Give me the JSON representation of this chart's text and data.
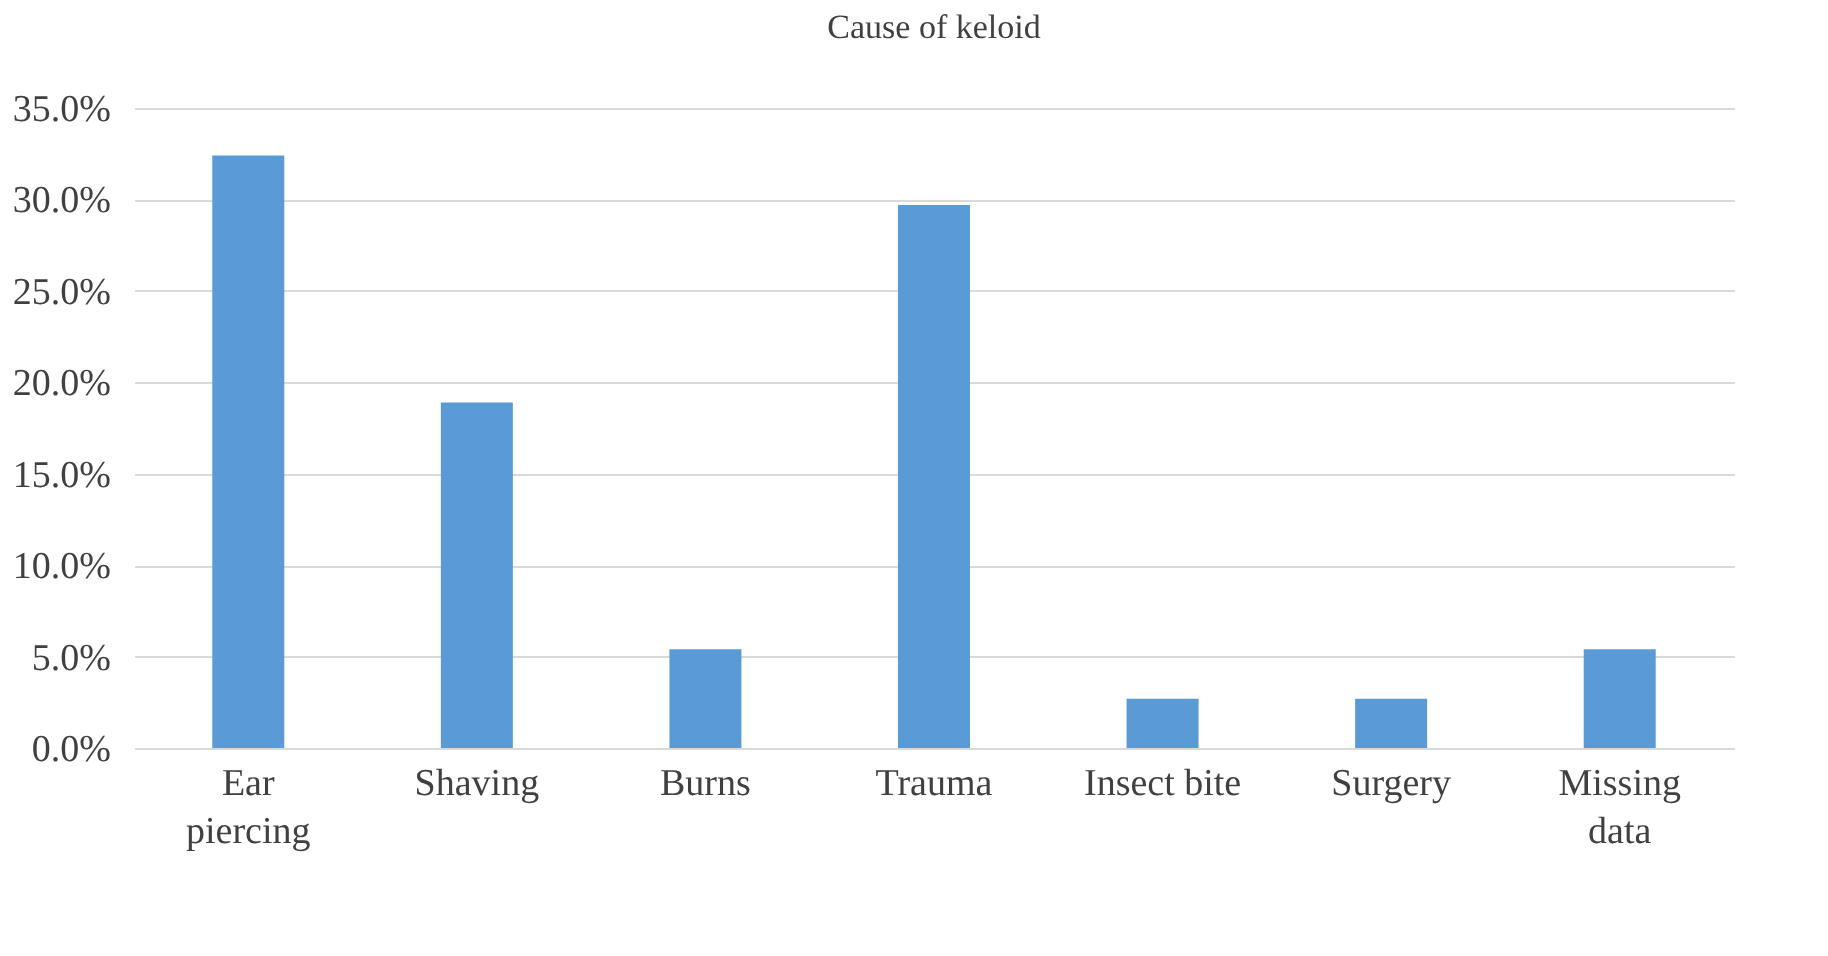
{
  "chart_data": {
    "type": "bar",
    "title": "Cause of keloid",
    "categories": [
      "Ear piercing",
      "Shaving",
      "Burns",
      "Trauma",
      "Insect bite",
      "Surgery",
      "Missing data"
    ],
    "values": [
      32.4,
      18.9,
      5.4,
      29.7,
      2.7,
      2.7,
      5.4
    ],
    "color": "#5b9bd5",
    "ylim": [
      0,
      35
    ],
    "yticks": [
      {
        "value": 0,
        "label": "0.0%"
      },
      {
        "value": 5,
        "label": "5.0%"
      },
      {
        "value": 10,
        "label": "10.0%"
      },
      {
        "value": 15,
        "label": "15.0%"
      },
      {
        "value": 20,
        "label": "20.0%"
      },
      {
        "value": 25,
        "label": "25.0%"
      },
      {
        "value": 30,
        "label": "30.0%"
      },
      {
        "value": 35,
        "label": "35.0%"
      }
    ],
    "grid": "y"
  }
}
